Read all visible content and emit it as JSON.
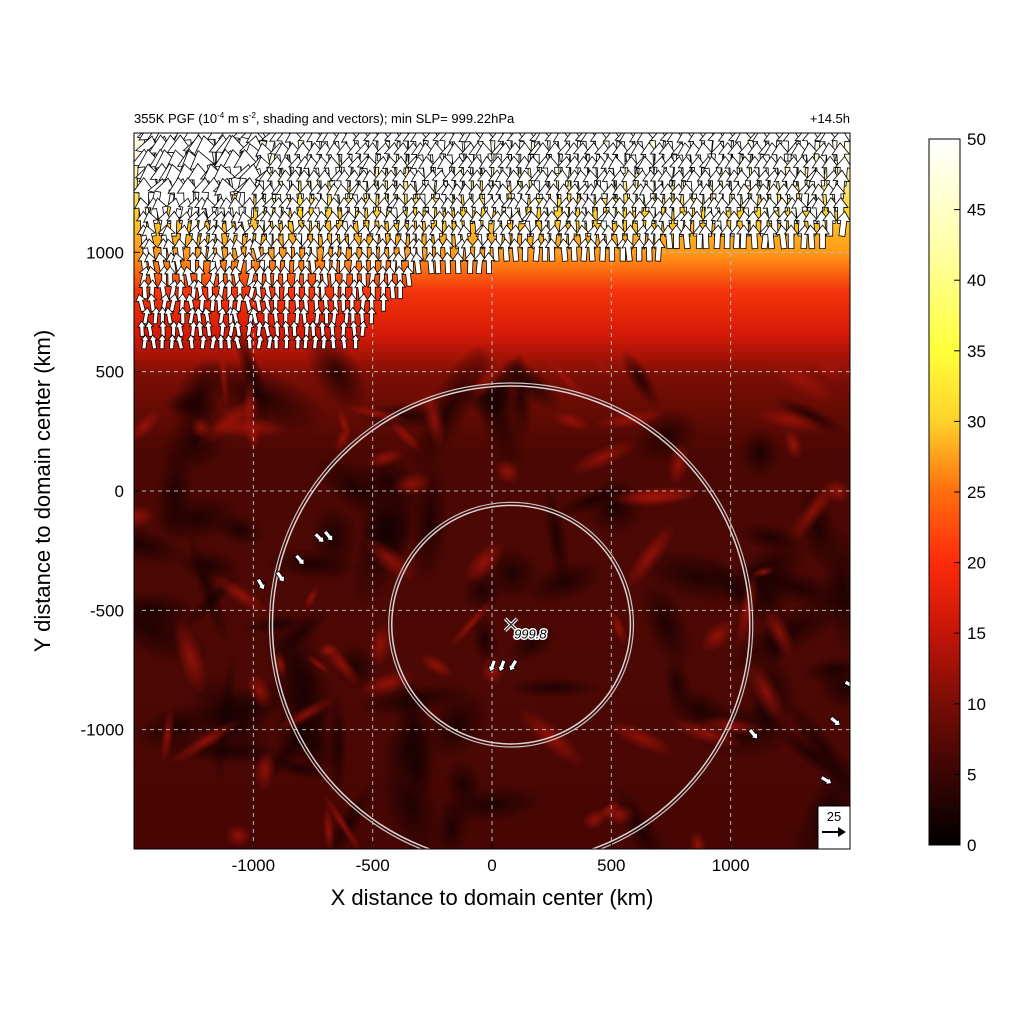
{
  "chart_data": {
    "type": "heatmap",
    "title_main": "355K PGF (10",
    "title_exp1": "-4",
    "title_mid": " m s",
    "title_exp2": "-2",
    "title_tail": ", shading and vectors); min SLP= 999.22hPa",
    "time_label": "+14.5h",
    "xlabel": "X distance to domain center (km)",
    "ylabel": "Y distance to domain center (km)",
    "xlim": [
      -1500,
      1500
    ],
    "ylim": [
      -1500,
      1500
    ],
    "x_ticks": [
      -1000,
      -500,
      0,
      500,
      1000
    ],
    "y_ticks": [
      1000,
      500,
      0,
      -500,
      -1000
    ],
    "x_tick_labels": [
      "-1000",
      "-500",
      "0",
      "500",
      "1000"
    ],
    "y_tick_labels": [
      "1000",
      "500",
      "0",
      "-500",
      "-1000"
    ],
    "grid": true,
    "colorbar": {
      "range": [
        0,
        50
      ],
      "ticks": [
        0,
        5,
        10,
        15,
        20,
        25,
        30,
        35,
        40,
        45,
        50
      ],
      "tick_labels": [
        "0",
        "5",
        "10",
        "15",
        "20",
        "25",
        "30",
        "35",
        "40",
        "45",
        "50"
      ],
      "colormap": [
        "#000000",
        "#2e0303",
        "#6b0e06",
        "#c11409",
        "#ff2a0a",
        "#ff7a10",
        "#ffd42a",
        "#ffff3a",
        "#ffffa8",
        "#ffffff"
      ]
    },
    "center_marker": {
      "x": 80,
      "y": -560,
      "label": "999.8"
    },
    "rings": [
      {
        "x": 80,
        "y": -560,
        "radius_km": 500
      },
      {
        "x": 80,
        "y": -560,
        "radius_km": 1000
      }
    ],
    "reference_vector": {
      "label": "25",
      "magnitude": 25
    },
    "field_summary": [
      {
        "region": "y > 1300 km",
        "value_range": [
          40,
          50
        ]
      },
      {
        "region": "1000 to 1300 km",
        "value_range": [
          25,
          40
        ]
      },
      {
        "region": "600 to 1000 km",
        "value_range": [
          15,
          25
        ]
      },
      {
        "region": "y < 500 km",
        "value_range": [
          0,
          10
        ]
      }
    ]
  }
}
